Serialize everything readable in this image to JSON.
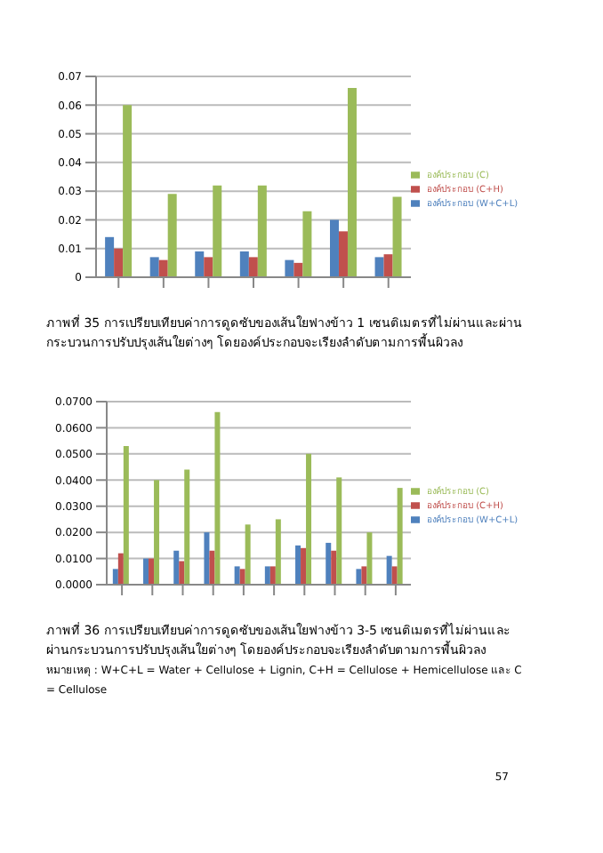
{
  "chart_data": [
    {
      "type": "bar",
      "categories": [
        null,
        null,
        null,
        null,
        null,
        null,
        null
      ],
      "series": [
        {
          "name": "องค์ประกอบ (W+C+L)",
          "color": "#4f81bd",
          "values": [
            0.014,
            0.007,
            0.009,
            0.009,
            0.006,
            0.02,
            0.007
          ]
        },
        {
          "name": "องค์ประกอบ (C+H)",
          "color": "#c0504d",
          "values": [
            0.01,
            0.006,
            0.007,
            0.007,
            0.005,
            0.016,
            0.008
          ]
        },
        {
          "name": "องค์ประกอบ (C)",
          "color": "#9bbb59",
          "values": [
            0.06,
            0.029,
            0.032,
            0.032,
            0.023,
            0.066,
            0.028
          ]
        }
      ],
      "ylim": [
        0,
        0.07
      ],
      "yticks": [
        0,
        0.01,
        0.02,
        0.03,
        0.04,
        0.05,
        0.06,
        0.07
      ],
      "grid": "y",
      "legend": "right",
      "annotations": [
        "ภาพที่ 35 การเปรียบเทียบค่าการดูดซับของเส้นใยฟางข้าว 1 เซนติเมตรที่ไม่ผ่านและผ่านกระบวนการปรับปรุงเส้นใยต่างๆ โดยองค์ประกอบจะเรียงลำดับตามการพื้นผิวลง"
      ]
    },
    {
      "type": "bar",
      "categories": [
        null,
        null,
        null,
        null,
        null,
        null,
        null,
        null,
        null,
        null
      ],
      "series": [
        {
          "name": "องค์ประกอบ (W+C+L)",
          "color": "#4f81bd",
          "values": [
            0.006,
            0.01,
            0.013,
            0.02,
            0.007,
            0.007,
            0.015,
            0.016,
            0.006,
            0.011
          ]
        },
        {
          "name": "องค์ประกอบ (C+H)",
          "color": "#c0504d",
          "values": [
            0.012,
            0.01,
            0.009,
            0.013,
            0.006,
            0.007,
            0.014,
            0.013,
            0.007,
            0.007
          ]
        },
        {
          "name": "องค์ประกอบ (C)",
          "color": "#9bbb59",
          "values": [
            0.053,
            0.04,
            0.044,
            0.066,
            0.023,
            0.025,
            0.05,
            0.041,
            0.02,
            0.037
          ]
        }
      ],
      "ylim": [
        0,
        0.07
      ],
      "yticks": [
        {
          "value": 0,
          "label": "0.0000"
        },
        {
          "value": 0.01,
          "label": "0.0100"
        },
        {
          "value": 0.02,
          "label": "0.0200"
        },
        {
          "value": 0.03,
          "label": "0.0300"
        },
        {
          "value": 0.04,
          "label": "0.0400"
        },
        {
          "value": 0.05,
          "label": "0.0500"
        },
        {
          "value": 0.06,
          "label": "0.0600"
        },
        {
          "value": 0.07,
          "label": "0.0700"
        }
      ],
      "grid": "y",
      "legend": "right",
      "annotations": [
        "ภาพที่ 36 การเปรียบเทียบค่าการดูดซับของเส้นใยฟางข้าว 3-5 เซนติเมตรที่ไม่ผ่านและผ่านกระบวนการปรับปรุงเส้นใยต่างๆ โดยองค์ประกอบจะเรียงลำดับตามการพื้นผิวลง",
        "หมายเหตุ : W+C+L = Water + Cellulose + Lignin, C+H = Cellulose + Hemicellulose และ C = Cellulose",
        "57"
      ]
    }
  ]
}
